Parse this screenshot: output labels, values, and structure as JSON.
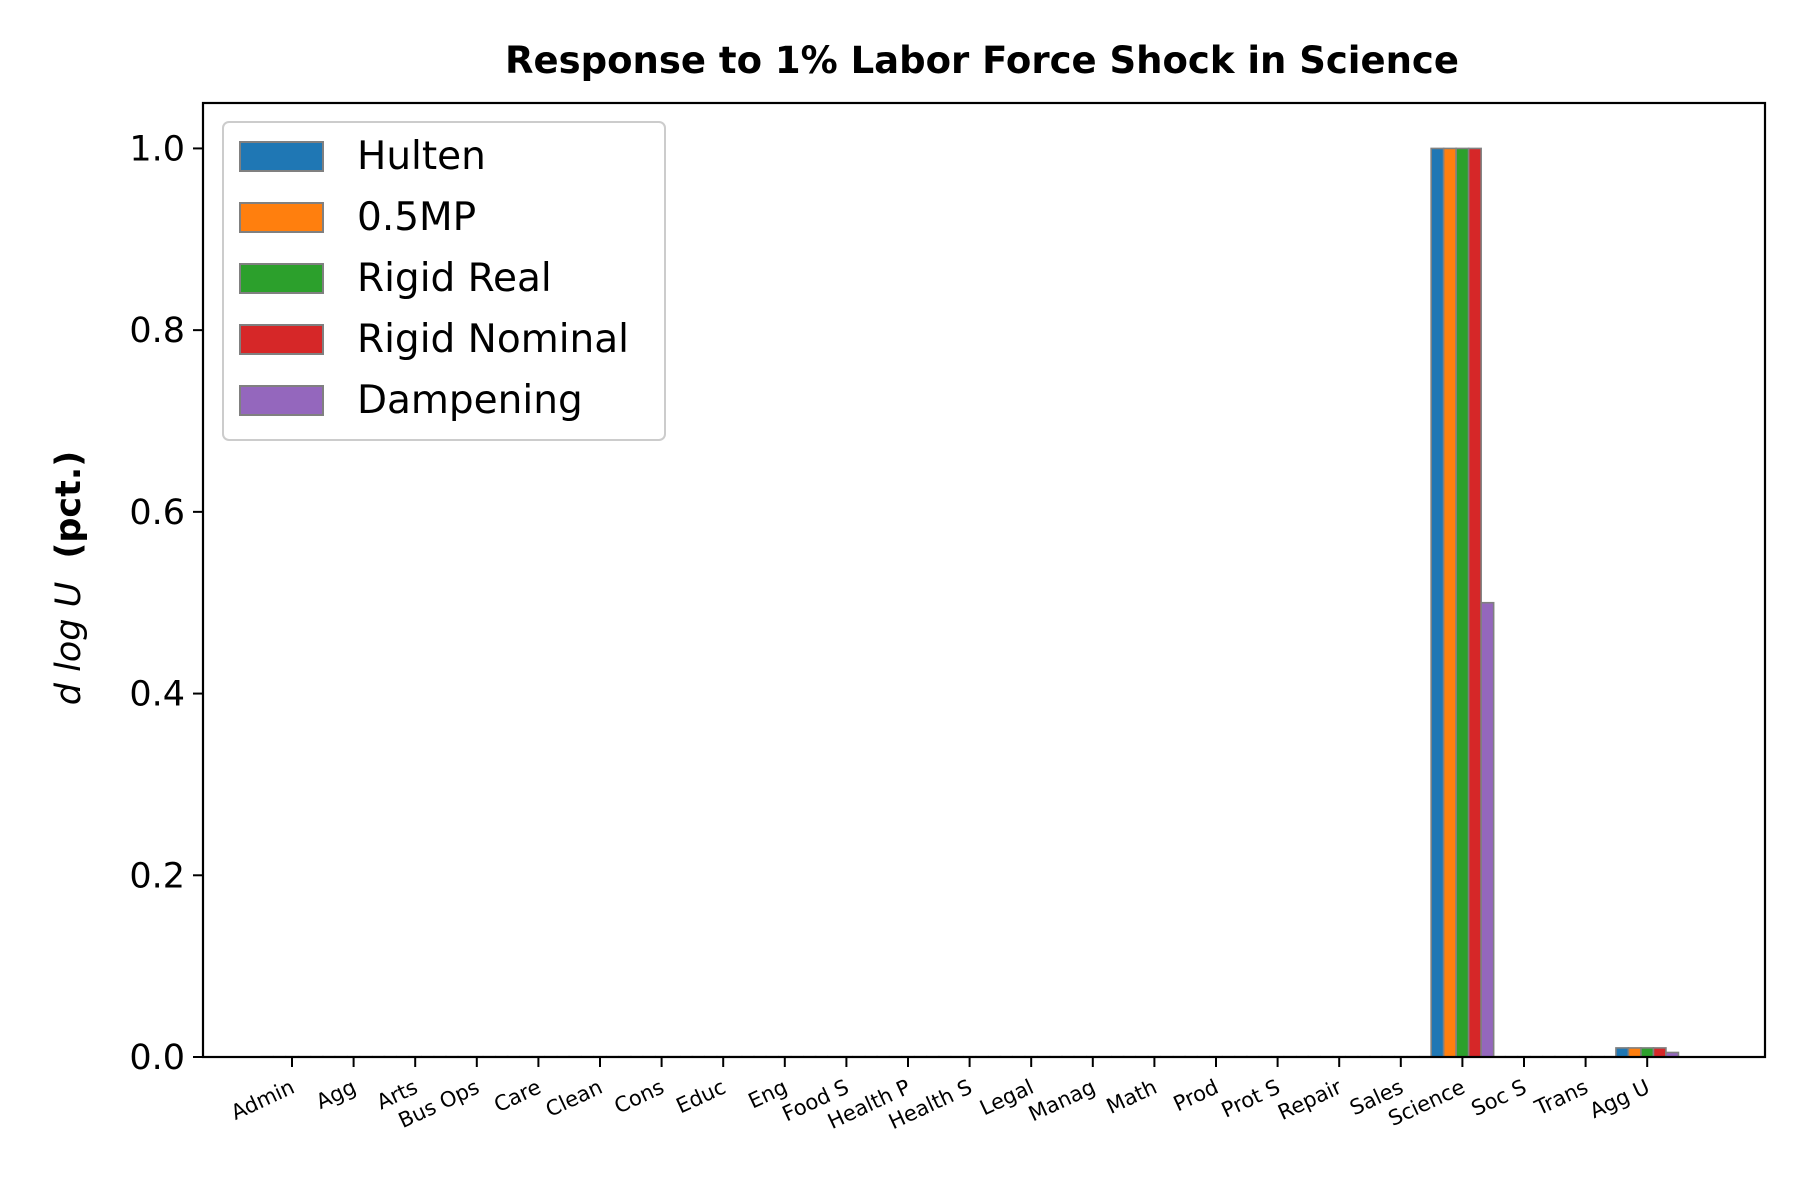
{
  "chart_data": {
    "type": "bar",
    "title": "Response to 1% Labor Force Shock in Science",
    "ylabel": {
      "main": "d log U",
      "unit": "(pct.)"
    },
    "xlabel": "",
    "ylim": [
      0,
      1.05
    ],
    "yticks": [
      "0.0",
      "0.2",
      "0.4",
      "0.6",
      "0.8",
      "1.0"
    ],
    "grid": false,
    "legend_position": "top-left",
    "categories": [
      "Admin",
      "Agg",
      "Arts",
      "Bus Ops",
      "Care",
      "Clean",
      "Cons",
      "Educ",
      "Eng",
      "Food S",
      "Health P",
      "Health S",
      "Legal",
      "Manag",
      "Math",
      "Prod",
      "Prot S",
      "Repair",
      "Sales",
      "Science",
      "Soc S",
      "Trans",
      "Agg U"
    ],
    "series": [
      {
        "name": "Hulten",
        "color": "#1f77b4",
        "values": [
          0,
          0,
          0,
          0,
          0,
          0,
          0,
          0,
          0,
          0,
          0,
          0,
          0,
          0,
          0,
          0,
          0,
          0,
          0,
          1.0,
          0,
          0,
          0.01
        ]
      },
      {
        "name": "0.5MP",
        "color": "#ff7f0e",
        "values": [
          0,
          0,
          0,
          0,
          0,
          0,
          0,
          0,
          0,
          0,
          0,
          0,
          0,
          0,
          0,
          0,
          0,
          0,
          0,
          1.0,
          0,
          0,
          0.01
        ]
      },
      {
        "name": "Rigid Real",
        "color": "#2ca02c",
        "values": [
          0,
          0,
          0,
          0,
          0,
          0,
          0,
          0,
          0,
          0,
          0,
          0,
          0,
          0,
          0,
          0,
          0,
          0,
          0,
          1.0,
          0,
          0,
          0.01
        ]
      },
      {
        "name": "Rigid Nominal",
        "color": "#d62728",
        "values": [
          0,
          0,
          0,
          0,
          0,
          0,
          0,
          0,
          0,
          0,
          0,
          0,
          0,
          0,
          0,
          0,
          0,
          0,
          0,
          1.0,
          0,
          0,
          0.01
        ]
      },
      {
        "name": "Dampening",
        "color": "#9467bd",
        "values": [
          0,
          0,
          0,
          0,
          0,
          0,
          0,
          0,
          0,
          0,
          0,
          0,
          0,
          0,
          0,
          0,
          0,
          0,
          0,
          0.5,
          0,
          0,
          0.005
        ]
      }
    ]
  }
}
